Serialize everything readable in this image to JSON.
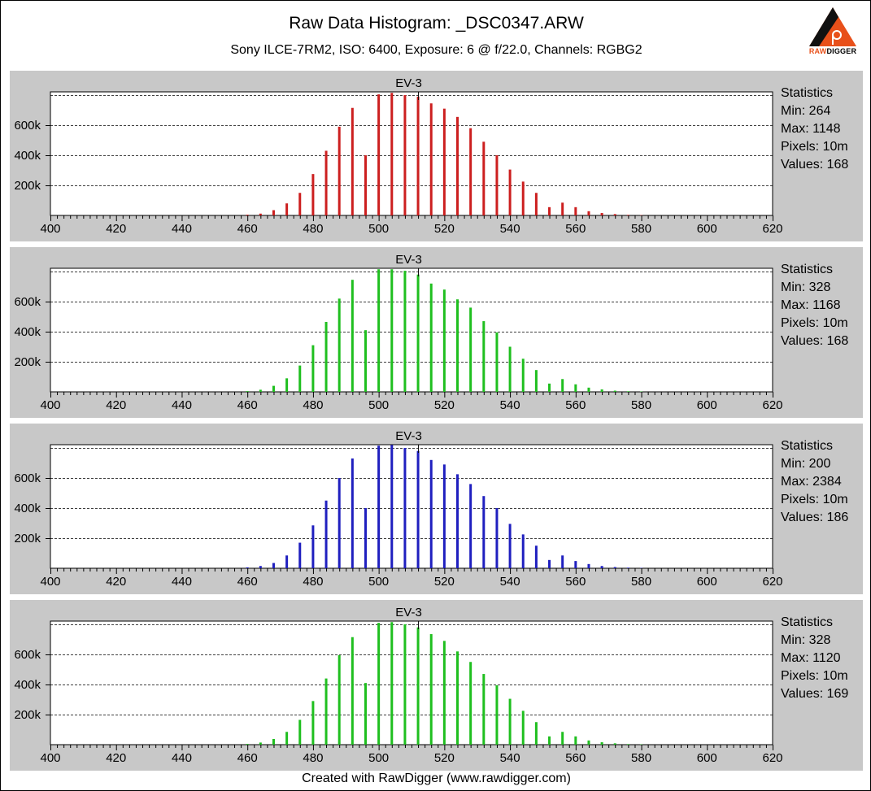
{
  "title": "Raw Data Histogram: _DSC0347.ARW",
  "subtitle": "Sony ILCE-7RM2, ISO: 6400, Exposure: 6 @ f/22.0, Channels: RGBG2",
  "footer": "Created with RawDigger (www.rawdigger.com)",
  "logo": {
    "icon": "rawdigger-logo-icon",
    "text_raw": "RAW",
    "text_digger": "DIGGER",
    "accent": "#e8501a"
  },
  "chart_data": [
    {
      "type": "bar",
      "channel_color": "#cc1f1f",
      "title": "EV-3",
      "xlim": [
        400,
        620
      ],
      "xticks": [
        400,
        420,
        440,
        460,
        480,
        500,
        520,
        540,
        560,
        580,
        600,
        620
      ],
      "ylim": [
        0,
        800000
      ],
      "yticks": [
        200000,
        400000,
        600000
      ],
      "ytick_labels": [
        "200k",
        "400k",
        "600k"
      ],
      "grid": "horizontal-dashed",
      "marker_x": 512,
      "x": [
        460,
        464,
        468,
        472,
        476,
        480,
        484,
        488,
        492,
        496,
        500,
        504,
        508,
        512,
        516,
        520,
        524,
        528,
        532,
        536,
        540,
        544,
        548,
        552,
        556,
        560,
        564,
        568,
        572,
        576,
        580
      ],
      "values": [
        5000,
        12000,
        35000,
        80000,
        150000,
        275000,
        430000,
        590000,
        715000,
        400000,
        805000,
        815000,
        800000,
        790000,
        745000,
        710000,
        655000,
        580000,
        490000,
        400000,
        305000,
        225000,
        150000,
        55000,
        85000,
        55000,
        28000,
        16000,
        9000,
        4000,
        2000
      ],
      "statistics": {
        "heading": "Statistics",
        "min": "Min: 264",
        "max": "Max: 1148",
        "pixels": "Pixels: 10m",
        "values": "Values: 168"
      }
    },
    {
      "type": "bar",
      "channel_color": "#1fbf1f",
      "title": "EV-3",
      "xlim": [
        400,
        620
      ],
      "xticks": [
        400,
        420,
        440,
        460,
        480,
        500,
        520,
        540,
        560,
        580,
        600,
        620
      ],
      "ylim": [
        0,
        800000
      ],
      "yticks": [
        200000,
        400000,
        600000
      ],
      "ytick_labels": [
        "200k",
        "400k",
        "600k"
      ],
      "grid": "horizontal-dashed",
      "marker_x": 512,
      "x": [
        460,
        464,
        468,
        472,
        476,
        480,
        484,
        488,
        492,
        496,
        500,
        504,
        508,
        512,
        516,
        520,
        524,
        528,
        532,
        536,
        540,
        544,
        548,
        552,
        556,
        560,
        564,
        568,
        572,
        576,
        580
      ],
      "values": [
        5000,
        14000,
        40000,
        90000,
        175000,
        310000,
        465000,
        620000,
        745000,
        410000,
        815000,
        815000,
        805000,
        780000,
        720000,
        680000,
        615000,
        560000,
        470000,
        395000,
        300000,
        220000,
        145000,
        55000,
        85000,
        50000,
        28000,
        16000,
        8000,
        4000,
        2000
      ],
      "statistics": {
        "heading": "Statistics",
        "min": "Min: 328",
        "max": "Max: 1168",
        "pixels": "Pixels: 10m",
        "values": "Values: 168"
      }
    },
    {
      "type": "bar",
      "channel_color": "#1f1fbf",
      "title": "EV-3",
      "xlim": [
        400,
        620
      ],
      "xticks": [
        400,
        420,
        440,
        460,
        480,
        500,
        520,
        540,
        560,
        580,
        600,
        620
      ],
      "ylim": [
        0,
        800000
      ],
      "yticks": [
        200000,
        400000,
        600000
      ],
      "ytick_labels": [
        "200k",
        "400k",
        "600k"
      ],
      "grid": "horizontal-dashed",
      "marker_x": 512,
      "x": [
        460,
        464,
        468,
        472,
        476,
        480,
        484,
        488,
        492,
        496,
        500,
        504,
        508,
        512,
        516,
        520,
        524,
        528,
        532,
        536,
        540,
        544,
        548,
        552,
        556,
        560,
        564,
        568,
        572,
        576,
        580
      ],
      "values": [
        6000,
        15000,
        35000,
        85000,
        170000,
        285000,
        450000,
        600000,
        730000,
        400000,
        815000,
        820000,
        800000,
        780000,
        720000,
        690000,
        625000,
        560000,
        480000,
        400000,
        295000,
        225000,
        150000,
        55000,
        85000,
        48000,
        28000,
        15000,
        8000,
        4000,
        2000
      ],
      "statistics": {
        "heading": "Statistics",
        "min": "Min: 200",
        "max": "Max: 2384",
        "pixels": "Pixels: 10m",
        "values": "Values: 186"
      }
    },
    {
      "type": "bar",
      "channel_color": "#1fbf1f",
      "title": "EV-3",
      "xlim": [
        400,
        620
      ],
      "xticks": [
        400,
        420,
        440,
        460,
        480,
        500,
        520,
        540,
        560,
        580,
        600,
        620
      ],
      "ylim": [
        0,
        800000
      ],
      "yticks": [
        200000,
        400000,
        600000
      ],
      "ytick_labels": [
        "200k",
        "400k",
        "600k"
      ],
      "grid": "horizontal-dashed",
      "marker_x": 512,
      "x": [
        460,
        464,
        468,
        472,
        476,
        480,
        484,
        488,
        492,
        496,
        500,
        504,
        508,
        512,
        516,
        520,
        524,
        528,
        532,
        536,
        540,
        544,
        548,
        552,
        556,
        560,
        564,
        568,
        572,
        576,
        580
      ],
      "values": [
        5000,
        14000,
        38000,
        85000,
        165000,
        290000,
        440000,
        595000,
        715000,
        410000,
        810000,
        815000,
        800000,
        780000,
        735000,
        690000,
        620000,
        550000,
        470000,
        395000,
        305000,
        225000,
        150000,
        55000,
        85000,
        55000,
        28000,
        16000,
        9000,
        4000,
        2000
      ],
      "statistics": {
        "heading": "Statistics",
        "min": "Min: 328",
        "max": "Max: 1120",
        "pixels": "Pixels: 10m",
        "values": "Values: 169"
      }
    }
  ]
}
